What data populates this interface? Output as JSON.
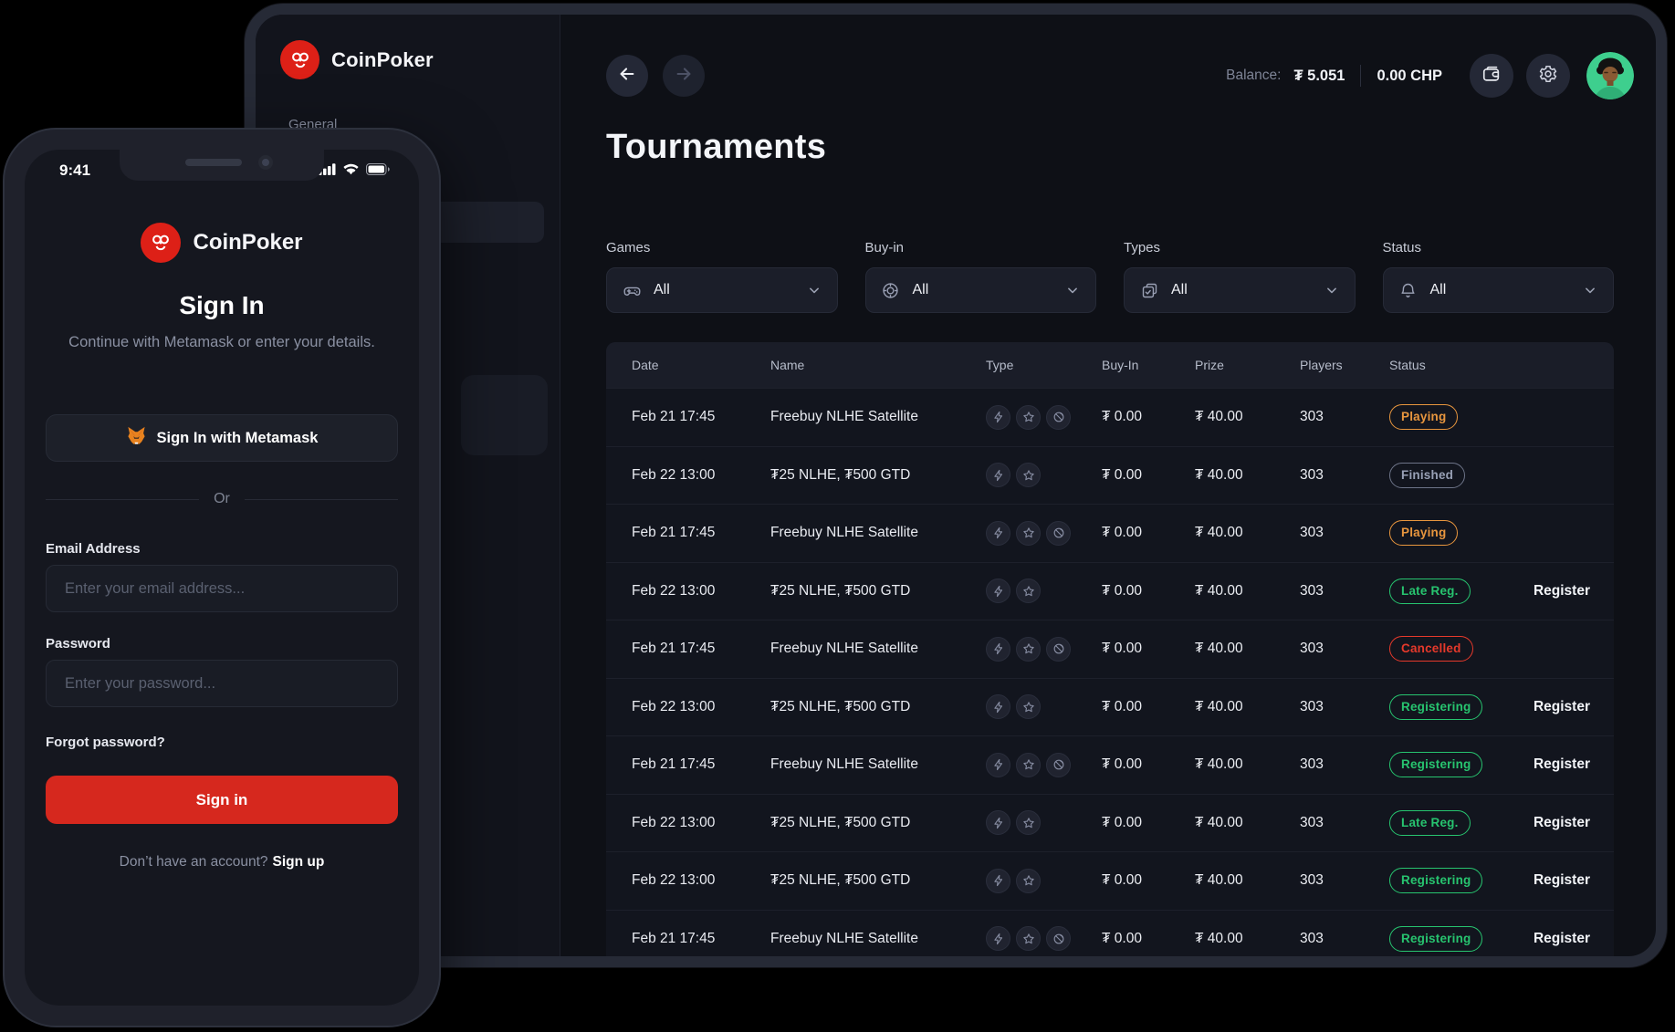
{
  "desktop": {
    "brand": "CoinPoker",
    "sidebar_section": "General",
    "topbar": {
      "balance_label": "Balance:",
      "balance_value": "₮ 5.051",
      "chp_value": "0.00 CHP"
    },
    "page_title": "Tournaments",
    "filters": {
      "games": {
        "label": "Games",
        "value": "All"
      },
      "buyin": {
        "label": "Buy-in",
        "value": "All"
      },
      "types": {
        "label": "Types",
        "value": "All"
      },
      "status": {
        "label": "Status",
        "value": "All"
      }
    },
    "table": {
      "columns": [
        "Date",
        "Name",
        "Type",
        "Buy-In",
        "Prize",
        "Players",
        "Status"
      ],
      "rows": [
        {
          "date": "Feb 21 17:45",
          "name": "Freebuy NLHE Satellite",
          "types": [
            "bolt",
            "star",
            "satellite"
          ],
          "buyin": "₮ 0.00",
          "prize": "₮ 40.00",
          "players": "303",
          "status": "Playing",
          "status_kind": "playing",
          "action": ""
        },
        {
          "date": "Feb 22 13:00",
          "name": "₮25 NLHE, ₮500 GTD",
          "types": [
            "bolt",
            "star"
          ],
          "buyin": "₮ 0.00",
          "prize": "₮ 40.00",
          "players": "303",
          "status": "Finished",
          "status_kind": "finished",
          "action": ""
        },
        {
          "date": "Feb 21 17:45",
          "name": "Freebuy NLHE Satellite",
          "types": [
            "bolt",
            "star",
            "satellite"
          ],
          "buyin": "₮ 0.00",
          "prize": "₮ 40.00",
          "players": "303",
          "status": "Playing",
          "status_kind": "playing",
          "action": ""
        },
        {
          "date": "Feb 22 13:00",
          "name": "₮25 NLHE, ₮500 GTD",
          "types": [
            "bolt",
            "star"
          ],
          "buyin": "₮ 0.00",
          "prize": "₮ 40.00",
          "players": "303",
          "status": "Late Reg.",
          "status_kind": "late",
          "action": "Register"
        },
        {
          "date": "Feb 21 17:45",
          "name": "Freebuy NLHE Satellite",
          "types": [
            "bolt",
            "star",
            "satellite"
          ],
          "buyin": "₮ 0.00",
          "prize": "₮ 40.00",
          "players": "303",
          "status": "Cancelled",
          "status_kind": "cancelled",
          "action": ""
        },
        {
          "date": "Feb 22 13:00",
          "name": "₮25 NLHE, ₮500 GTD",
          "types": [
            "bolt",
            "star"
          ],
          "buyin": "₮ 0.00",
          "prize": "₮ 40.00",
          "players": "303",
          "status": "Registering",
          "status_kind": "registering",
          "action": "Register"
        },
        {
          "date": "Feb 21 17:45",
          "name": "Freebuy NLHE Satellite",
          "types": [
            "bolt",
            "star",
            "satellite"
          ],
          "buyin": "₮ 0.00",
          "prize": "₮ 40.00",
          "players": "303",
          "status": "Registering",
          "status_kind": "registering",
          "action": "Register"
        },
        {
          "date": "Feb 22 13:00",
          "name": "₮25 NLHE, ₮500 GTD",
          "types": [
            "bolt",
            "star"
          ],
          "buyin": "₮ 0.00",
          "prize": "₮ 40.00",
          "players": "303",
          "status": "Late Reg.",
          "status_kind": "late",
          "action": "Register"
        },
        {
          "date": "Feb 22 13:00",
          "name": "₮25 NLHE, ₮500 GTD",
          "types": [
            "bolt",
            "star"
          ],
          "buyin": "₮ 0.00",
          "prize": "₮ 40.00",
          "players": "303",
          "status": "Registering",
          "status_kind": "registering",
          "action": "Register"
        },
        {
          "date": "Feb 21 17:45",
          "name": "Freebuy NLHE Satellite",
          "types": [
            "bolt",
            "star",
            "satellite"
          ],
          "buyin": "₮ 0.00",
          "prize": "₮ 40.00",
          "players": "303",
          "status": "Registering",
          "status_kind": "registering",
          "action": "Register"
        }
      ]
    }
  },
  "phone": {
    "status_time": "9:41",
    "brand": "CoinPoker",
    "heading": "Sign In",
    "subtitle": "Continue with Metamask or enter your details.",
    "metamask_button": "Sign In with Metamask",
    "divider": "Or",
    "email_label": "Email Address",
    "email_placeholder": "Enter your email address...",
    "password_label": "Password",
    "password_placeholder": "Enter your password...",
    "forgot": "Forgot password?",
    "signin_button": "Sign in",
    "footer_text": "Don’t have an account?",
    "footer_link": "Sign up"
  },
  "colors": {
    "brand_red": "#dd2017",
    "signin_red": "#d6281e",
    "badge_orange": "#e8963e",
    "badge_green": "#27c46f",
    "badge_red": "#e6392b",
    "badge_gray": "#98a0b5",
    "avatar_green": "#3ecf8e"
  }
}
